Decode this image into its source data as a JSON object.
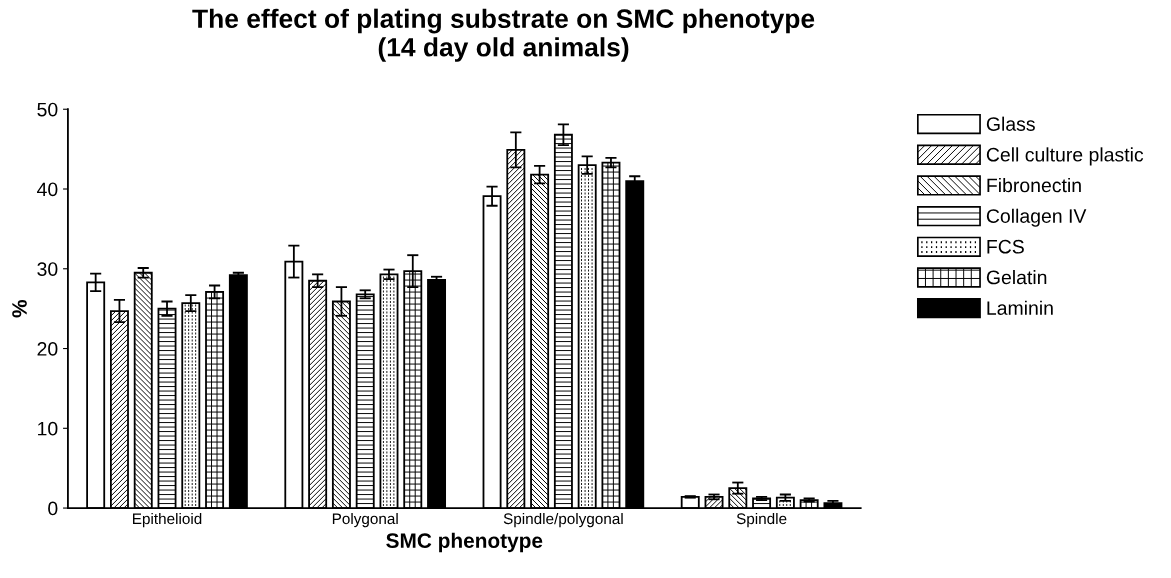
{
  "chart_data": {
    "type": "bar",
    "title": "The effect of plating substrate on SMC phenotype\n(14 day old animals)",
    "xlabel": "SMC phenotype",
    "ylabel": "%",
    "categories": [
      "Epithelioid",
      "Polygonal",
      "Spindle/polygonal",
      "Spindle"
    ],
    "ylim": [
      0,
      50
    ],
    "yticks": [
      0,
      10,
      20,
      30,
      40,
      50
    ],
    "grid": false,
    "legend": "top right",
    "series": [
      {
        "name": "Glass",
        "color": "#ffffff",
        "values": [
          28.3,
          30.9,
          39.1,
          1.4
        ],
        "errors": [
          1.1,
          2.0,
          1.2,
          0.1
        ]
      },
      {
        "name": "Cell culture plastic",
        "color": "#ffffff",
        "values": [
          24.7,
          28.5,
          44.9,
          1.4
        ],
        "errors": [
          1.4,
          0.8,
          2.2,
          0.3
        ]
      },
      {
        "name": "Fibronectin",
        "color": "#ffffff",
        "values": [
          29.5,
          25.9,
          41.8,
          2.5
        ],
        "errors": [
          0.6,
          1.8,
          1.1,
          0.7
        ]
      },
      {
        "name": "Collagen IV",
        "color": "#ffffff",
        "values": [
          25.0,
          26.8,
          46.8,
          1.2
        ],
        "errors": [
          0.9,
          0.5,
          1.3,
          0.2
        ]
      },
      {
        "name": "FCS",
        "color": "#ffffff",
        "values": [
          25.7,
          29.3,
          43.0,
          1.3
        ],
        "errors": [
          1.0,
          0.6,
          1.1,
          0.4
        ]
      },
      {
        "name": "Gelatin",
        "color": "#ffffff",
        "values": [
          27.1,
          29.7,
          43.3,
          1.0
        ],
        "errors": [
          0.8,
          2.0,
          0.6,
          0.2
        ]
      },
      {
        "name": "Laminin",
        "color": "#000000",
        "values": [
          29.2,
          28.6,
          41.0,
          0.6
        ],
        "errors": [
          0.3,
          0.4,
          0.6,
          0.3
        ]
      }
    ]
  }
}
